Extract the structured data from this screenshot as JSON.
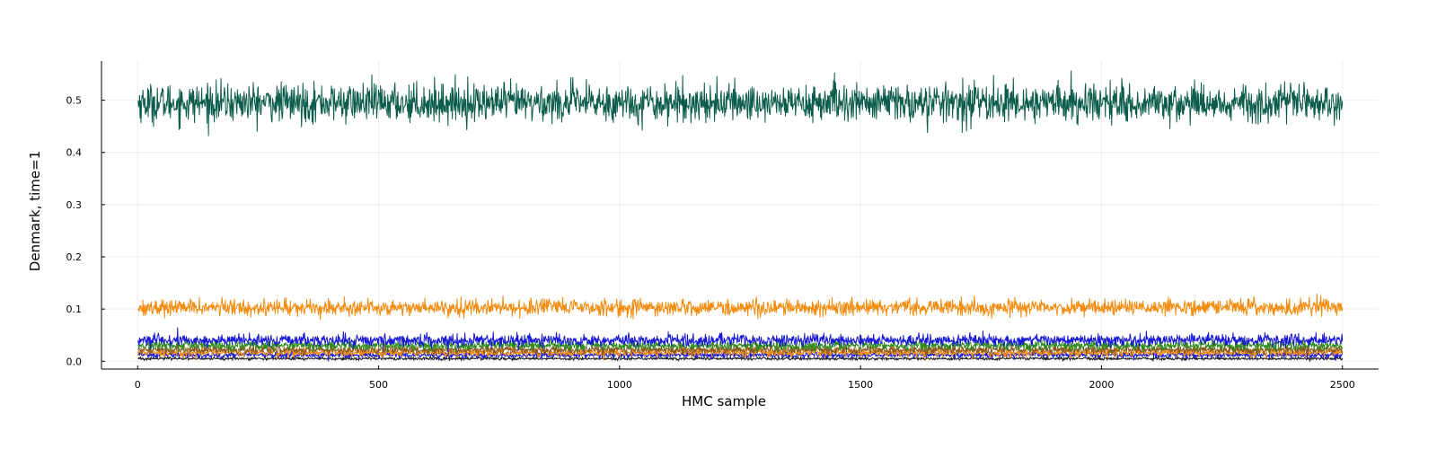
{
  "chart_data": {
    "type": "line",
    "title": "",
    "xlabel": "HMC sample",
    "ylabel": "Denmark, time=1",
    "xlim": [
      -75,
      2575
    ],
    "ylim": [
      -0.015,
      0.575
    ],
    "x_ticks": [
      0,
      500,
      1000,
      1500,
      2000,
      2500
    ],
    "x_tick_labels": [
      "0",
      "500",
      "1000",
      "1500",
      "2000",
      "2500"
    ],
    "y_ticks": [
      0.0,
      0.1,
      0.2,
      0.3,
      0.4,
      0.5
    ],
    "y_tick_labels": [
      "0.0",
      "0.1",
      "0.2",
      "0.3",
      "0.4",
      "0.5"
    ],
    "grid": true,
    "legend": "none",
    "n_samples": 2500,
    "series": [
      {
        "color": "#0b5c4a",
        "mean": 0.495,
        "sd": 0.018
      },
      {
        "color": "#f28c0f",
        "mean": 0.103,
        "sd": 0.0075
      },
      {
        "color": "#1a1ad6",
        "mean": 0.04,
        "sd": 0.0055
      },
      {
        "color": "#2e8b1e",
        "mean": 0.03,
        "sd": 0.0045
      },
      {
        "color": "#8a5a20",
        "mean": 0.022,
        "sd": 0.004
      },
      {
        "color": "#f28c0f",
        "mean": 0.017,
        "sd": 0.004
      },
      {
        "color": "#1a1ad6",
        "mean": 0.012,
        "sd": 0.003
      },
      {
        "color": "#222222",
        "mean": 0.005,
        "sd": 0.0015
      }
    ]
  }
}
